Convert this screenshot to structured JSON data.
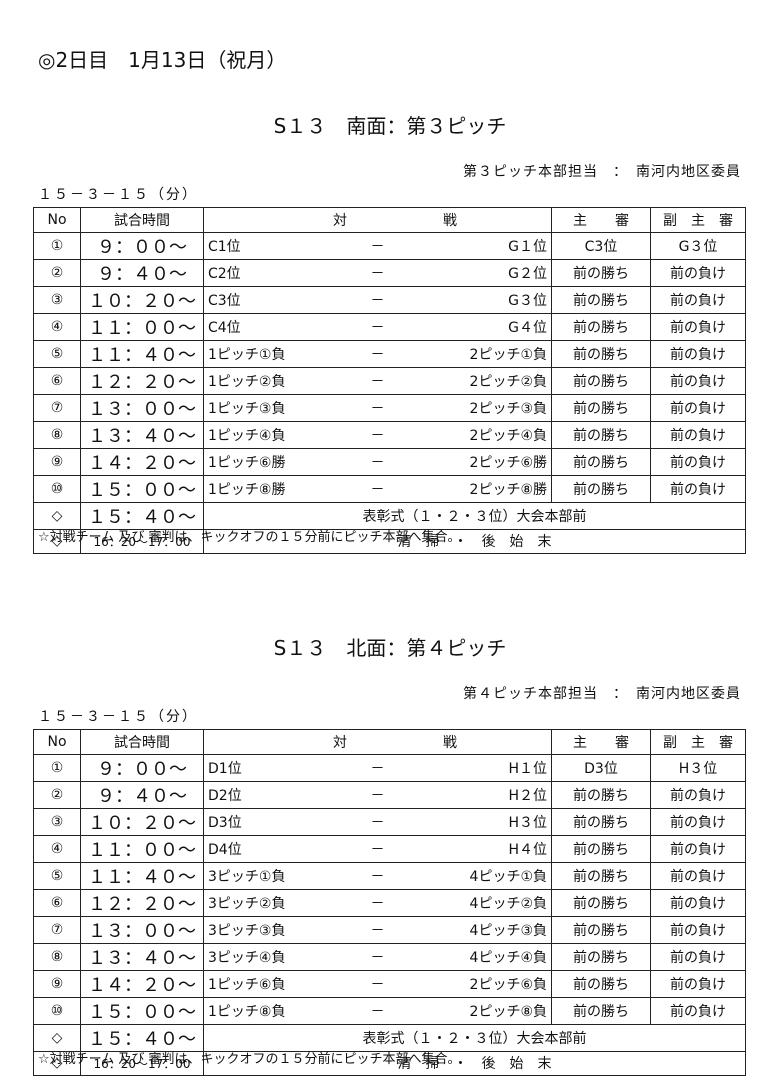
{
  "header": {
    "title": "◎2日目　1月13日（祝月）"
  },
  "sections": [
    {
      "title": "S１３　南面：第３ピッチ",
      "staff": "第３ピッチ本部担当　：　南河内地区委員",
      "format": "１５－３－１５（分）",
      "columns": [
        "No",
        "試合時間",
        "対",
        "戦",
        "主　　審",
        "副　主　審"
      ],
      "rows": [
        {
          "no": "①",
          "time": "９：００～",
          "team_a": "C1位",
          "vs": "－",
          "team_b": "G１位",
          "referee": "C3位",
          "assistant": "G３位"
        },
        {
          "no": "②",
          "time": "９：４０～",
          "team_a": "C2位",
          "vs": "－",
          "team_b": "G２位",
          "referee": "前の勝ち",
          "assistant": "前の負け"
        },
        {
          "no": "③",
          "time": "１０：２０～",
          "team_a": "C3位",
          "vs": "－",
          "team_b": "G３位",
          "referee": "前の勝ち",
          "assistant": "前の負け"
        },
        {
          "no": "④",
          "time": "１１：００～",
          "team_a": "C4位",
          "vs": "－",
          "team_b": "G４位",
          "referee": "前の勝ち",
          "assistant": "前の負け"
        },
        {
          "no": "⑤",
          "time": "１１：４０～",
          "team_a": "1ピッチ①負",
          "vs": "－",
          "team_b": "2ピッチ①負",
          "referee": "前の勝ち",
          "assistant": "前の負け"
        },
        {
          "no": "⑥",
          "time": "１２：２０～",
          "team_a": "1ピッチ②負",
          "vs": "－",
          "team_b": "2ピッチ②負",
          "referee": "前の勝ち",
          "assistant": "前の負け"
        },
        {
          "no": "⑦",
          "time": "１３：００～",
          "team_a": "1ピッチ③負",
          "vs": "－",
          "team_b": "2ピッチ③負",
          "referee": "前の勝ち",
          "assistant": "前の負け"
        },
        {
          "no": "⑧",
          "time": "１３：４０～",
          "team_a": "1ピッチ④負",
          "vs": "－",
          "team_b": "2ピッチ④負",
          "referee": "前の勝ち",
          "assistant": "前の負け"
        },
        {
          "no": "⑨",
          "time": "１４：２０～",
          "team_a": "1ピッチ⑥勝",
          "vs": "－",
          "team_b": "2ピッチ⑥勝",
          "referee": "前の勝ち",
          "assistant": "前の負け"
        },
        {
          "no": "⑩",
          "time": "１５：００～",
          "team_a": "1ピッチ⑧勝",
          "vs": "－",
          "team_b": "2ピッチ⑧勝",
          "referee": "前の勝ち",
          "assistant": "前の負け"
        },
        {
          "no": "◇",
          "time": "１５：４０～",
          "event": "表彰式（１・２・３位）大会本部前"
        },
        {
          "no": "◇",
          "time": "16：20～17：00",
          "event": "清　掃　・　後　始　末"
        }
      ],
      "note": "☆対戦チーム 及び 審判は、キックオフの１５分前にピッチ本部へ集合。"
    },
    {
      "title": "S１３　北面：第４ピッチ",
      "staff": "第４ピッチ本部担当　：　南河内地区委員",
      "format": "１５－３－１５（分）",
      "columns": [
        "No",
        "試合時間",
        "対",
        "戦",
        "主　　審",
        "副　主　審"
      ],
      "rows": [
        {
          "no": "①",
          "time": "９：００～",
          "team_a": "D1位",
          "vs": "－",
          "team_b": "H１位",
          "referee": "D3位",
          "assistant": "H３位"
        },
        {
          "no": "②",
          "time": "９：４０～",
          "team_a": "D2位",
          "vs": "－",
          "team_b": "H２位",
          "referee": "前の勝ち",
          "assistant": "前の負け"
        },
        {
          "no": "③",
          "time": "１０：２０～",
          "team_a": "D3位",
          "vs": "－",
          "team_b": "H３位",
          "referee": "前の勝ち",
          "assistant": "前の負け"
        },
        {
          "no": "④",
          "time": "１１：００～",
          "team_a": "D4位",
          "vs": "－",
          "team_b": "H４位",
          "referee": "前の勝ち",
          "assistant": "前の負け"
        },
        {
          "no": "⑤",
          "time": "１１：４０～",
          "team_a": "3ピッチ①負",
          "vs": "－",
          "team_b": "4ピッチ①負",
          "referee": "前の勝ち",
          "assistant": "前の負け"
        },
        {
          "no": "⑥",
          "time": "１２：２０～",
          "team_a": "3ピッチ②負",
          "vs": "－",
          "team_b": "4ピッチ②負",
          "referee": "前の勝ち",
          "assistant": "前の負け"
        },
        {
          "no": "⑦",
          "time": "１３：００～",
          "team_a": "3ピッチ③負",
          "vs": "－",
          "team_b": "4ピッチ③負",
          "referee": "前の勝ち",
          "assistant": "前の負け"
        },
        {
          "no": "⑧",
          "time": "１３：４０～",
          "team_a": "3ピッチ④負",
          "vs": "－",
          "team_b": "4ピッチ④負",
          "referee": "前の勝ち",
          "assistant": "前の負け"
        },
        {
          "no": "⑨",
          "time": "１４：２０～",
          "team_a": "1ピッチ⑥負",
          "vs": "－",
          "team_b": "2ピッチ⑥負",
          "referee": "前の勝ち",
          "assistant": "前の負け"
        },
        {
          "no": "⑩",
          "time": "１５：００～",
          "team_a": "1ピッチ⑧負",
          "vs": "－",
          "team_b": "2ピッチ⑧負",
          "referee": "前の勝ち",
          "assistant": "前の負け"
        },
        {
          "no": "◇",
          "time": "１５：４０～",
          "event": "表彰式（１・２・３位）大会本部前"
        },
        {
          "no": "◇",
          "time": "16：20～17：00",
          "event": "清　掃　・　後　始　末"
        }
      ],
      "note": "☆対戦チーム 及び 審判は、キックオフの１５分前にピッチ本部へ集合。"
    }
  ]
}
